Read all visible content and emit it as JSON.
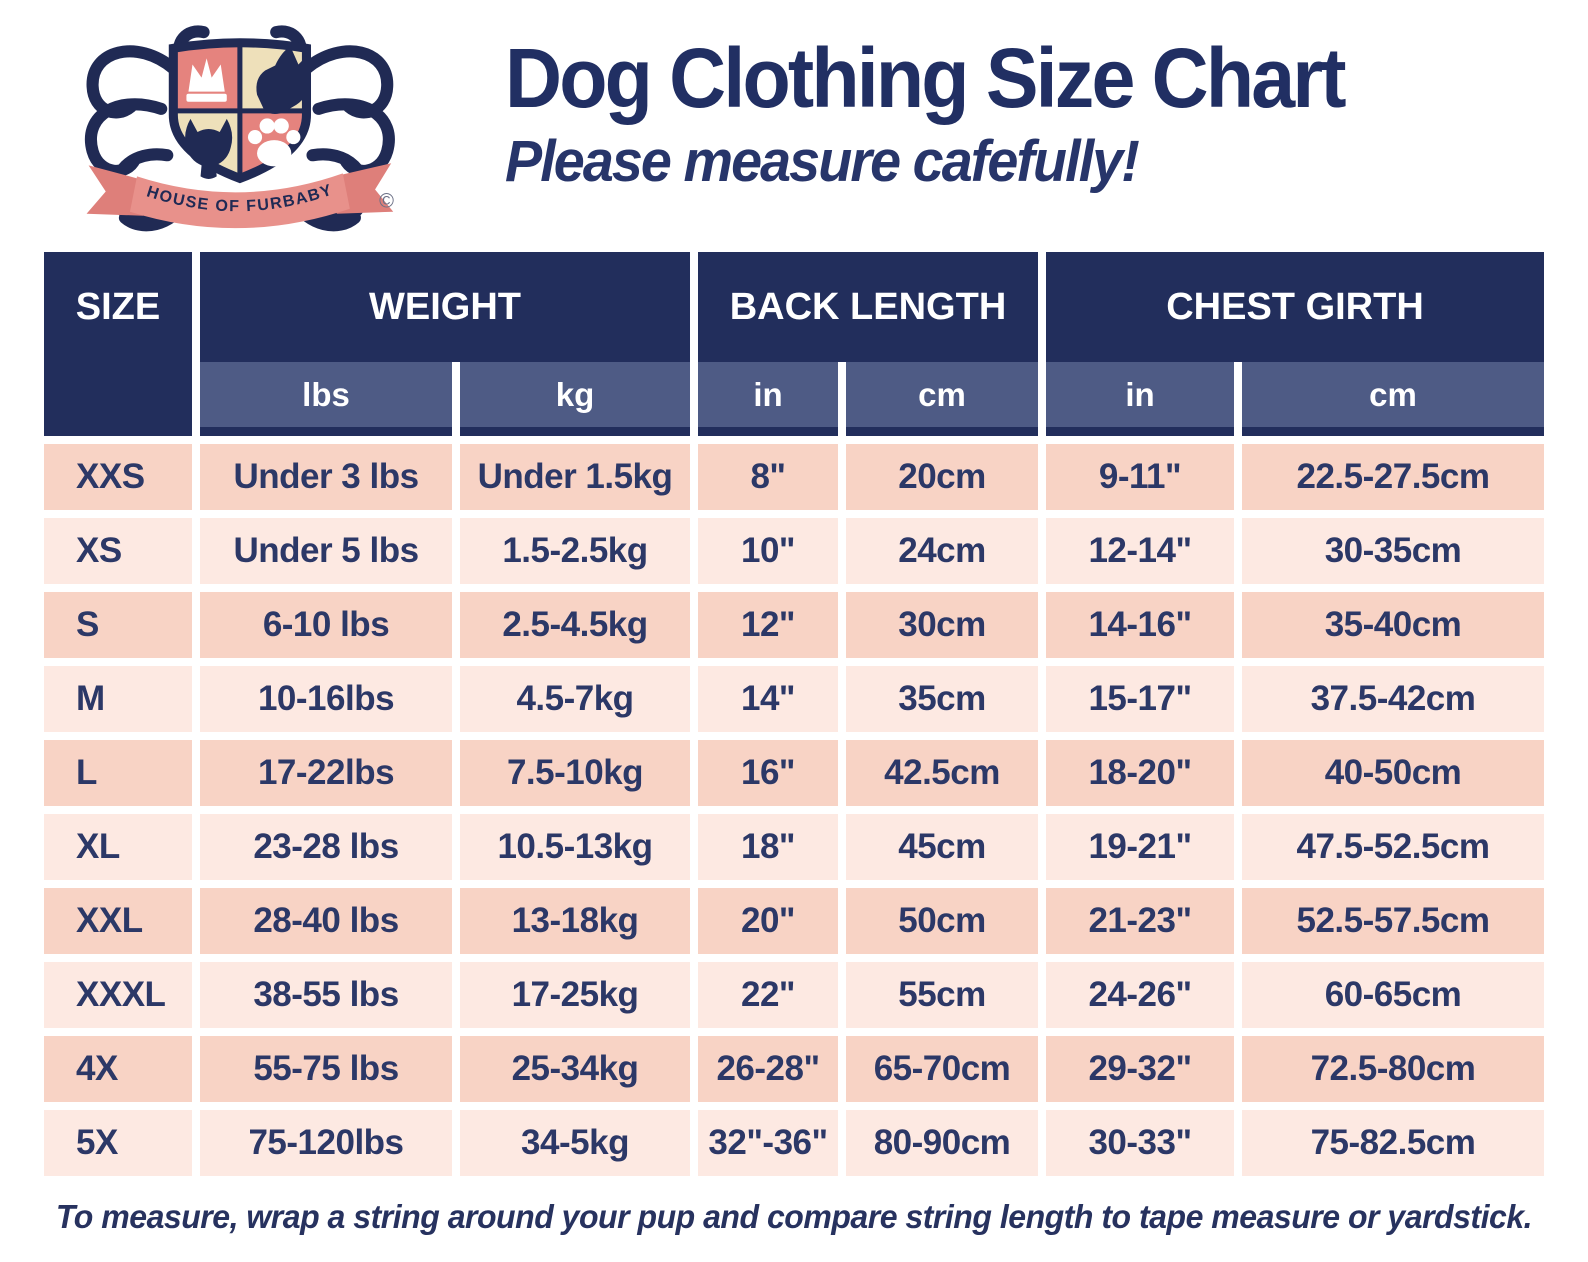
{
  "logo": {
    "banner_text": "HOUSE OF FURBABY",
    "copyright": "©"
  },
  "header": {
    "title": "Dog Clothing Size Chart",
    "subtitle": "Please measure cafefully!"
  },
  "table": {
    "columns": {
      "size": "SIZE",
      "weight": "WEIGHT",
      "back_length": "BACK LENGTH",
      "chest_girth": "CHEST GIRTH"
    },
    "units": [
      "lbs",
      "kg",
      "in",
      "cm",
      "in",
      "cm"
    ]
  },
  "chart_data": {
    "type": "table",
    "title": "Dog Clothing Size Chart",
    "columns": [
      "SIZE",
      "WEIGHT lbs",
      "WEIGHT kg",
      "BACK LENGTH in",
      "BACK LENGTH cm",
      "CHEST GIRTH in",
      "CHEST GIRTH cm"
    ],
    "rows": [
      [
        "XXS",
        "Under 3 lbs",
        "Under 1.5kg",
        "8\"",
        "20cm",
        "9-11\"",
        "22.5-27.5cm"
      ],
      [
        "XS",
        "Under 5 lbs",
        "1.5-2.5kg",
        "10\"",
        "24cm",
        "12-14\"",
        "30-35cm"
      ],
      [
        "S",
        "6-10 lbs",
        "2.5-4.5kg",
        "12\"",
        "30cm",
        "14-16\"",
        "35-40cm"
      ],
      [
        "M",
        "10-16lbs",
        "4.5-7kg",
        "14\"",
        "35cm",
        "15-17\"",
        "37.5-42cm"
      ],
      [
        "L",
        "17-22lbs",
        "7.5-10kg",
        "16\"",
        "42.5cm",
        "18-20\"",
        "40-50cm"
      ],
      [
        "XL",
        "23-28 lbs",
        "10.5-13kg",
        "18\"",
        "45cm",
        "19-21\"",
        "47.5-52.5cm"
      ],
      [
        "XXL",
        "28-40 lbs",
        "13-18kg",
        "20\"",
        "50cm",
        "21-23\"",
        "52.5-57.5cm"
      ],
      [
        "XXXL",
        "38-55 lbs",
        "17-25kg",
        "22\"",
        "55cm",
        "24-26\"",
        "60-65cm"
      ],
      [
        "4X",
        "55-75 lbs",
        "25-34kg",
        "26-28\"",
        "65-70cm",
        "29-32\"",
        "72.5-80cm"
      ],
      [
        "5X",
        "75-120lbs",
        "34-5kg",
        "32\"-36\"",
        "80-90cm",
        "30-33\"",
        "75-82.5cm"
      ]
    ]
  },
  "footer": {
    "note": "To measure, wrap a string around your pup and  compare string length to tape measure or yardstick."
  },
  "colors": {
    "header_navy": "#222e5c",
    "subheader_blue": "#4e5b85",
    "row_dark": "#f8d3c5",
    "row_light": "#fde9e2",
    "text_navy": "#2c3867",
    "title_navy": "#212f63",
    "logo_coral": "#e5837e",
    "logo_cream": "#eee0ba",
    "ribbon_coral": "#e8918b",
    "logo_navy": "#202a54"
  }
}
